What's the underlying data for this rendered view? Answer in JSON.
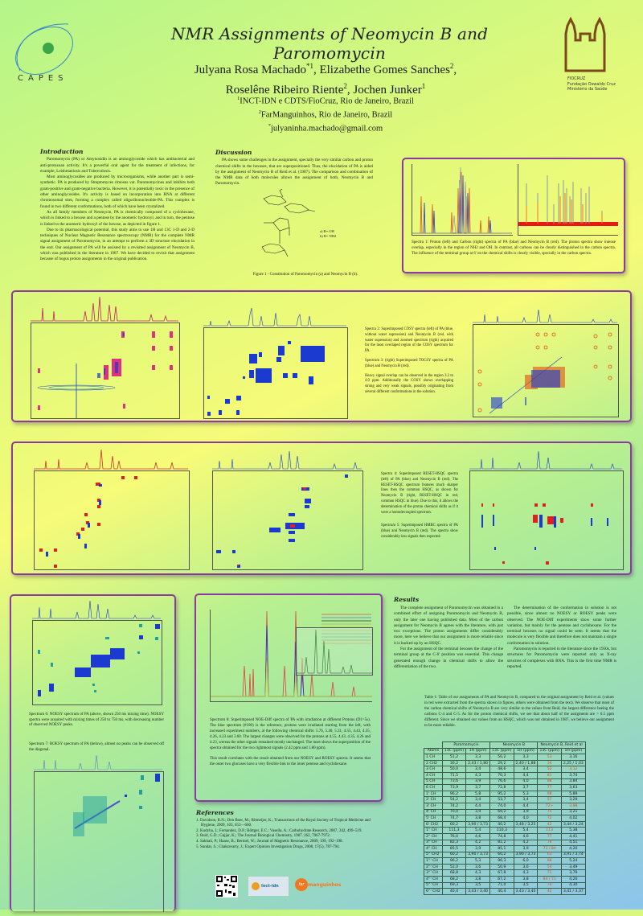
{
  "header": {
    "title": "NMR Assignments of Neomycin B and Paromomycin",
    "authors_line1": "Julyana Rosa Machado*1, Elizabethe Gomes Sanches2,",
    "authors": [
      {
        "name": "Julyana Rosa Machado",
        "sup": "*1"
      },
      {
        "name": "Elizabethe Gomes Sanches",
        "sup": "2"
      },
      {
        "name": "Roselêne Ribeiro Riente",
        "sup": "2"
      },
      {
        "name": "Jochen Junker",
        "sup": "1"
      }
    ],
    "affiliations": [
      {
        "sup": "1",
        "text": "INCT-IDN e CDTS/FioCruz, Rio de Janeiro, Brazil"
      },
      {
        "sup": "2",
        "text": "FarManguinhos, Rio de Janeiro, Brazil"
      },
      {
        "sup": "*",
        "text": "julyaninha.machado@gmail.com"
      }
    ],
    "left_logo_text": "CAPES",
    "right_logo_lines": [
      "FIOCRUZ",
      "Fundação Oswaldo Cruz",
      "Ministério da Saúde"
    ]
  },
  "introduction": {
    "heading": "Introduction",
    "paragraphs": [
      "Paromomycin (PA) or Amynosidin is an aminoglycoside which has antibacterial and anti-protozoan activity. It's a powerful oral agent for the treatment of infections, for example, Leishmaniosis and Tuberculosis.",
      "Most aminoglycosides are produced by microorganisms, while another part is semi-synthetic. PA is produced by Streptomyces rimosus var. Paromomycinus and inhibits both gram-positive and gram-negative bacteria. However, it is potentially toxic in the presence of other aminoglycosides. It's activity is based on incorporation into RNA at different chromosomal sites, forming a complex called oligoribonucleotide-PA. This complex is found in two different conformations, both of which have been crystalized.",
      "As all family members of Neomycin, PA is chemically composed of a cyclohexane, which is linked to a hexose and a pentose by the anomeric hydroxyl, and in turn, the pentose is linked to the anomeric hydroxyl of the hexose, as depicted in figure 1.",
      "Due to its pharmacological potential, this study aims to use 1H and 13C 1-D and 2-D techniques of Nuclear Magnetic Resonance spectroscopy (NMR) for the complete NMR signal assignment of Paromomycin, in an attempt to perform a 3D structure elucidation in the end. Our assignment of PA will be assisted by a revisited assignment of Neomycin B, which was published in the literature in 1987. We have decided to revisit that assignment because of bogus proton assignments in the original publication."
    ]
  },
  "discussion": {
    "heading": "Discussion",
    "paragraphs": [
      "PA shows some challenges in the assignment, specially the very similar carbon and proton chemical shifts in the hexoses, that are superpositioned. Thus, the elucidation of PA is aided by the assignment of Neomycin B of Reid et al. (1987). The comparison and combination of the NMR data of both molecules allows the assignment of both, Neomycin B and Paromomycin."
    ],
    "figure_legend": [
      "a) R= OH",
      "b) R= NH2"
    ],
    "figure_caption": "Figure 1 - Constitution of Paromomycin (a) and Neomycin B (b)."
  },
  "spectra1": {
    "caption": "Spectra 1: Proton (left) and Carbon (right) spectra of PA (blue) and Neomycin B (red). The proton spectra show intense overlap, especially in the region of NH2 and OH. In contrast, all carbons can be clearly distinguished in the carbon spectra. The influence of the terminal group at 6' on the chemical shifts is clearly visible, specially in the carbon spectra.",
    "left_axis_label": "ppm",
    "right_axis_label": "ppm"
  },
  "row2": {
    "caption_p1": "Spectra 2: Superimposed COSY spectra (left) of PA (blue, without water supression) and Neomycin B (red, with water supression) and zoomed spectrum (rigth) acquired for the most overlaped region of the COSY spectrum for PA.",
    "caption_p2": "Spectrum 3: (right) Superimposed TOCSY spectra of PA (blue) and Neomycin B (red).",
    "caption_p3": "Heavy signal overlap can be observed in the region 3.2 to 4.0 ppm. Additionally the COSY shows overlapping strong and very weak signals, possibly originating from several different conformations in the solution.",
    "axis_label": "ppm"
  },
  "row3": {
    "caption_p1": "Spectra 4: Superimposed RESET-HSQC spectra (left) of PA (blue) and Neomycin B (red). The RESET-HSQC spectrum features much sharper lines then the common HSQC, as shown for Neomycin B (right, RESET-HSQC in red, common HSQC in blue). Due to this, it allows the determination of the proton chemical shifts as if it were a homodecoupled spectrum.",
    "caption_p2": "Spectrum 5: Superimposed HMBC spectra of PA (blue) and Neomycin B (red). The spectra show considerably less signals then expected.",
    "axis_label": "F2 (ppm)"
  },
  "noesy": {
    "caption6": "Spectrum 6: NOESY spectrum of PA (above, shown 250 ms mixing time). NOESY spectra were acquired with mixing times of 250 to 750 ms, with decreasing number of observed NOESY peaks.",
    "caption7": "Spectrum 7: ROESY spectrum of PA (below), almost no peaks can be observed off the diagonal."
  },
  "noediff": {
    "caption_p1": "Spectrum 8: Superimposed NOE-Diff spectra of PA with irradiation at different Protons (D1=5s). The blue spectrum (#100) is the reference, protons were irradiated starting from the left, with increased experiment numbers, at the following chemical shifts: 5.76, 5.40, 5.31, 4.55, 4.43, 4.35, 4.26, 4.23 and 3.60. The largest changes were observed for the protons at 4.55, 4.43, 4.35, 4.26 and 4.23, wereas the other signals remained mostly unchanged. The inset shows the superposition of the spectra obtained for the two rightmost signals (2.42 ppm and 1.80 ppm).",
    "caption_p2": "This result correlates with the result obtained from our NOESY and ROESY spectra. It seems that the outer two glucoses have a very flexible link to the inner pentose and cyclohexane.",
    "axis_label": "ppm"
  },
  "results": {
    "heading": "Results",
    "paragraphs": [
      "The complete assignment of Paromomycin was obtained in a combined effort of assigning Paromomycin and Neomycin B, only the later one having published data. Most of the carbon assignment for Neomycin B agrees with the literature, with just two exceptions. The proton assignments differ considerably more, here we believe that our assignment is more reliable since it is backed up by an HSQC.",
      "For the assignment of the terminal hexoses the change of the terminal group at the C-6' position was essential. This change generated enough change in chemical shifts to allow the differentiation of the two.",
      "The determination of the conformation in solution is not possible, since almost no NOESY or ROESY peaks were observed. The NOE-Diff experiments show some further variation, but mainly for the pentose and cyclohexane. For the terminal hexoses no signal could be seen. It seems that the molecule is very flexible and therefore does not maintain a single conformation in solution.",
      "Paromomycin is reported in the literature since the 1950s, but structures for Paromomycin were reported only as X-ray structres of complexes with RNA. This is the first time NMR is reported."
    ]
  },
  "table": {
    "caption": "Table 1: Table of our assignments of PA and Neomycin B, compared to the original assignment by Reid et al. (values in red were extracted from the spectra shown in figures, others were obtained from the text). We observe that most of the carbon chemical shifts of Neomycin B are very similar to the values from Reid, the largest difference beeing the carbons C-4 and C-5. As for the proton chemical shifts, we see that about half of the assigments are > 0.5 ppm different. Since we obtained our values from an HSQC, which was not obtained in 1987, we believe our assignment to be more reliable.",
    "group_headers": [
      "Paromomycin",
      "Neomycin B",
      "Neomycin B, Reid et al"
    ],
    "column_headers": [
      "Atoms",
      "13C (ppm)",
      "1H (ppm)",
      "13C (ppm)",
      "1H (ppm)",
      "13C (ppm)",
      "1H (ppm)"
    ],
    "rows": [
      [
        "1 CH",
        "51,2",
        "3,3",
        "50,2",
        "3,3",
        "53",
        "3,16"
      ],
      [
        "2 CH2",
        "30,2",
        "2,43 / 1,80",
        "29,2",
        "2,40 / 1,88",
        "34",
        "2,25 / 1,03"
      ],
      [
        "3 CH",
        "50,0",
        "3,4",
        "48,6",
        "3,4",
        "52",
        "3,12"
      ],
      [
        "4 CH",
        "71,5",
        "4,3",
        "70,3",
        "4,4",
        "81",
        "3,74"
      ],
      [
        "5 CH",
        "73,6",
        "3,9",
        "76,6",
        "4,0",
        "88",
        "3,84"
      ],
      [
        "6 CH",
        "73,9",
        "3,7",
        "72,8",
        "3,7",
        "77",
        "3,63"
      ],
      [
        "1' CH",
        "96,2",
        "5,8",
        "95,2",
        "5,3",
        "98",
        "5,89"
      ],
      [
        "2' CH",
        "54,2",
        "3,4",
        "53,7",
        "3,4",
        "57",
        "3,29"
      ],
      [
        "3' CH",
        "74,2",
        "4,4",
        "74,0",
        "4,4",
        "72+",
        "3,88"
      ],
      [
        "4' CH",
        "70,0",
        "3,9",
        "69,2",
        "3,9",
        "75",
        "3,21"
      ],
      [
        "5' CH",
        "74,7",
        "3,8",
        "68,4",
        "4,0",
        "72",
        "4,02"
      ],
      [
        "6' CH2",
        "60,2",
        "3,90 / 3,73",
        "40,2",
        "3,48 / 3,25",
        "42",
        "3,44 / 3,24"
      ],
      [
        "1'' CH",
        "111,3",
        "5,4",
        "110,3",
        "5,4",
        "113",
        "5,38"
      ],
      [
        "2'' CH",
        "76,0",
        "4,6",
        "74,8",
        "4,6",
        "77",
        "4,41"
      ],
      [
        "3'' CH",
        "82,3",
        "4,2",
        "81,2",
        "4,2",
        "78",
        "4,51"
      ],
      [
        "4'' CH",
        "85,5",
        "3,9",
        "85,1",
        "3,9",
        "71 / 84",
        "4,20"
      ],
      [
        "5'' CH2",
        "60,2",
        "3,90 / 3,73",
        "60,2",
        "3,90 / 3,73",
        "63",
        "3,91 / 3,74"
      ],
      [
        "1''' CH",
        "96,2",
        "5,3",
        "96,3",
        "6,0",
        "98",
        "5,24"
      ],
      [
        "2''' CH",
        "52,0",
        "3,6",
        "50,9",
        "3,6",
        "54",
        "3,49"
      ],
      [
        "3''' CH",
        "68,8",
        "4,3",
        "67,8",
        "4,3",
        "71",
        "3,79"
      ],
      [
        "4''' CH",
        "68,2",
        "3,8",
        "67,2",
        "3,8",
        "84 / 71",
        "4,20"
      ],
      [
        "5''' CH",
        "69,3",
        "3,5",
        "71,0",
        "3,5",
        "74",
        "4,30"
      ],
      [
        "6''' CH2",
        "40,4",
        "3,43 / 3,40",
        "40,4",
        "3,43 / 3,40",
        "42",
        "3,41 / 3,37"
      ]
    ],
    "red_cells": {
      "2": [
        5,
        6
      ],
      "8": [
        5,
        6
      ]
    }
  },
  "references": {
    "heading": "References",
    "items": [
      "1. Davidson, R.N.; Den Boer, M.; Ritmeijer, K.; Transactions of the Royal Society of Tropical Medicine and Hygiene, 2009, 103, 653—660.",
      "2. Kudyba, I.; Fernandez, D.P.; Böttger, E.C.; Vasella, A.; Carbohydrate Research, 2007, 342, 499–519.",
      "3. Reid, G.D.; Gajjar, K.; The Journal Biological Chemistry, 1987. 262, 7967-7972.",
      "4. Sakhaii, P.; Haase, B.; Bermel, W.; Journal of Magnetic Resonance, 2009, 199, 192–198.",
      "5. Sundar, S.; Chakravarty, J.; Expert Opinion Investigation Drugs, 2008, 17(5), 787-794."
    ]
  },
  "footer_logos": [
    "qr-code",
    "inct-idn",
    "farmanguinhos"
  ],
  "footer_logo_text": {
    "inct": "Inct-idn",
    "far_prefix": "far",
    "far_suffix": "manguinhos"
  },
  "colors": {
    "panel_border": "#8a3aa0",
    "pa_blue": "#1a3ad0",
    "neo_red": "#e02020",
    "table_red": "#d0501a",
    "fiocruz_brown": "#7a4a1a"
  }
}
